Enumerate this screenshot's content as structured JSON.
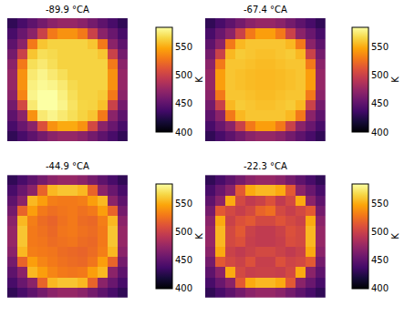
{
  "chart_data": [
    {
      "type": "heatmap",
      "title": "-89.9 °CA",
      "colorbar_title": "K",
      "zlim": [
        400,
        585
      ],
      "zticks": [
        400,
        450,
        500,
        550
      ],
      "tick_labels": false,
      "z": [
        [
          430,
          440,
          450,
          460,
          470,
          475,
          475,
          470,
          460,
          450,
          440,
          430
        ],
        [
          440,
          455,
          470,
          500,
          530,
          540,
          540,
          530,
          500,
          470,
          455,
          440
        ],
        [
          450,
          470,
          530,
          560,
          565,
          565,
          565,
          565,
          560,
          530,
          470,
          450
        ],
        [
          460,
          500,
          560,
          570,
          568,
          565,
          565,
          565,
          565,
          560,
          500,
          460
        ],
        [
          470,
          530,
          570,
          575,
          570,
          565,
          565,
          565,
          565,
          565,
          530,
          470
        ],
        [
          475,
          540,
          575,
          580,
          575,
          570,
          565,
          565,
          565,
          565,
          540,
          475
        ],
        [
          475,
          540,
          578,
          582,
          580,
          575,
          568,
          565,
          565,
          565,
          540,
          475
        ],
        [
          470,
          535,
          580,
          585,
          585,
          578,
          570,
          565,
          565,
          562,
          530,
          470
        ],
        [
          460,
          505,
          575,
          585,
          585,
          580,
          572,
          566,
          565,
          558,
          500,
          460
        ],
        [
          450,
          470,
          540,
          575,
          580,
          575,
          570,
          565,
          560,
          530,
          470,
          450
        ],
        [
          440,
          455,
          470,
          510,
          540,
          550,
          550,
          540,
          505,
          470,
          455,
          440
        ],
        [
          430,
          440,
          450,
          460,
          470,
          475,
          475,
          470,
          460,
          450,
          440,
          430
        ]
      ]
    },
    {
      "type": "heatmap",
      "title": "-67.4 °CA",
      "colorbar_title": "K",
      "zlim": [
        400,
        585
      ],
      "zticks": [
        400,
        450,
        500,
        550
      ],
      "tick_labels": false,
      "z": [
        [
          430,
          440,
          450,
          460,
          470,
          475,
          475,
          470,
          460,
          450,
          440,
          430
        ],
        [
          440,
          455,
          470,
          500,
          530,
          545,
          545,
          530,
          500,
          470,
          455,
          440
        ],
        [
          450,
          470,
          530,
          555,
          560,
          560,
          560,
          560,
          555,
          530,
          470,
          450
        ],
        [
          460,
          500,
          555,
          562,
          560,
          558,
          558,
          560,
          562,
          555,
          500,
          460
        ],
        [
          470,
          530,
          560,
          560,
          558,
          556,
          556,
          558,
          560,
          560,
          530,
          470
        ],
        [
          475,
          545,
          560,
          558,
          556,
          555,
          555,
          556,
          558,
          560,
          545,
          475
        ],
        [
          475,
          545,
          560,
          558,
          556,
          555,
          555,
          556,
          558,
          560,
          545,
          475
        ],
        [
          470,
          530,
          560,
          560,
          558,
          556,
          556,
          558,
          560,
          560,
          530,
          470
        ],
        [
          460,
          500,
          555,
          562,
          560,
          558,
          558,
          560,
          562,
          555,
          500,
          460
        ],
        [
          450,
          470,
          530,
          555,
          560,
          560,
          560,
          560,
          555,
          530,
          470,
          450
        ],
        [
          440,
          455,
          470,
          500,
          530,
          545,
          545,
          530,
          500,
          470,
          455,
          440
        ],
        [
          430,
          440,
          450,
          460,
          470,
          475,
          475,
          470,
          460,
          450,
          440,
          430
        ]
      ]
    },
    {
      "type": "heatmap",
      "title": "-44.9 °CA",
      "colorbar_title": "K",
      "zlim": [
        400,
        585
      ],
      "zticks": [
        400,
        450,
        500,
        550
      ],
      "tick_labels": false,
      "z": [
        [
          430,
          440,
          450,
          460,
          470,
          475,
          475,
          470,
          460,
          450,
          440,
          430
        ],
        [
          440,
          455,
          470,
          520,
          555,
          560,
          560,
          555,
          520,
          470,
          455,
          440
        ],
        [
          450,
          470,
          555,
          545,
          532,
          530,
          530,
          532,
          545,
          555,
          470,
          450
        ],
        [
          460,
          520,
          545,
          530,
          525,
          528,
          530,
          526,
          530,
          545,
          520,
          460
        ],
        [
          470,
          555,
          532,
          524,
          520,
          526,
          530,
          524,
          522,
          532,
          555,
          470
        ],
        [
          475,
          560,
          530,
          526,
          522,
          528,
          530,
          526,
          524,
          530,
          560,
          475
        ],
        [
          475,
          560,
          530,
          528,
          524,
          526,
          528,
          524,
          522,
          530,
          560,
          475
        ],
        [
          470,
          555,
          532,
          530,
          528,
          524,
          522,
          520,
          524,
          532,
          555,
          470
        ],
        [
          460,
          520,
          545,
          535,
          530,
          526,
          524,
          522,
          528,
          545,
          520,
          460
        ],
        [
          450,
          470,
          555,
          545,
          535,
          530,
          528,
          530,
          545,
          555,
          470,
          450
        ],
        [
          440,
          455,
          470,
          520,
          555,
          560,
          560,
          555,
          520,
          470,
          455,
          440
        ],
        [
          430,
          440,
          450,
          460,
          470,
          475,
          475,
          470,
          460,
          450,
          440,
          430
        ]
      ]
    },
    {
      "type": "heatmap",
      "title": "-22.3 °CA",
      "colorbar_title": "K",
      "zlim": [
        400,
        585
      ],
      "zticks": [
        400,
        450,
        500,
        550
      ],
      "tick_labels": false,
      "z": [
        [
          430,
          440,
          450,
          460,
          470,
          475,
          475,
          470,
          460,
          450,
          440,
          430
        ],
        [
          440,
          455,
          470,
          515,
          550,
          555,
          555,
          550,
          515,
          470,
          455,
          440
        ],
        [
          450,
          470,
          550,
          505,
          495,
          500,
          510,
          495,
          505,
          550,
          470,
          450
        ],
        [
          460,
          515,
          505,
          498,
          505,
          520,
          525,
          505,
          498,
          505,
          515,
          460
        ],
        [
          470,
          550,
          500,
          510,
          515,
          505,
          505,
          512,
          505,
          500,
          550,
          470
        ],
        [
          475,
          555,
          505,
          515,
          500,
          495,
          495,
          500,
          510,
          505,
          555,
          475
        ],
        [
          475,
          555,
          505,
          510,
          498,
          495,
          495,
          498,
          508,
          505,
          555,
          475
        ],
        [
          470,
          550,
          500,
          495,
          500,
          505,
          505,
          500,
          495,
          500,
          550,
          470
        ],
        [
          460,
          515,
          505,
          500,
          510,
          498,
          498,
          510,
          502,
          505,
          515,
          460
        ],
        [
          450,
          470,
          550,
          505,
          498,
          500,
          500,
          498,
          505,
          550,
          470,
          450
        ],
        [
          440,
          455,
          470,
          515,
          550,
          555,
          555,
          550,
          515,
          470,
          455,
          440
        ],
        [
          430,
          440,
          450,
          460,
          470,
          475,
          475,
          470,
          460,
          450,
          440,
          430
        ]
      ]
    }
  ]
}
